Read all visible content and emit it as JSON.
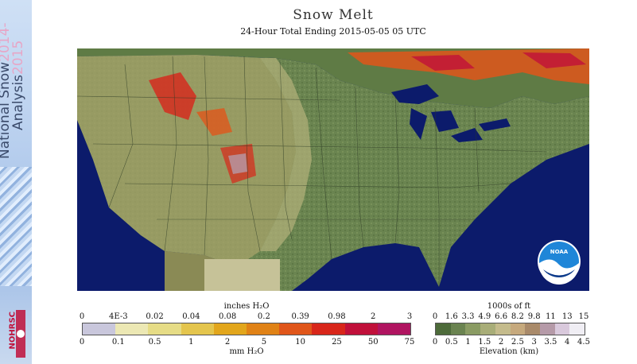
{
  "strip": {
    "line1": "National Snow",
    "line1_year": "2014-",
    "line2": "Analysis",
    "line2_year": "2015",
    "logo_text": "NOHRSC"
  },
  "title": "Snow Melt",
  "subtitle": "24-Hour Total Ending 2015-05-05 05 UTC",
  "map": {
    "logo_text": "NOAA",
    "water_color": "#0c1b6b"
  },
  "legend_melt": {
    "top_label": "inches H₂O",
    "bottom_label": "mm H₂O",
    "inches": [
      "0",
      "4E-3",
      "0.02",
      "0.04",
      "0.08",
      "0.2",
      "0.39",
      "0.98",
      "2",
      "3"
    ],
    "mm": [
      "0",
      "0.1",
      "0.5",
      "1",
      "2",
      "5",
      "10",
      "25",
      "50",
      "75"
    ],
    "colors": [
      "#c9c7dc",
      "#ece8b4",
      "#e6dc86",
      "#e4c54d",
      "#e2a61c",
      "#e08216",
      "#e0561a",
      "#d8261a",
      "#c0103a",
      "#b01460"
    ]
  },
  "legend_elev": {
    "top_label": "1000s of ft",
    "bottom_label": "Elevation (km)",
    "ft": [
      "0",
      "1.6",
      "3.3",
      "4.9",
      "6.6",
      "8.2",
      "9.8",
      "11",
      "13",
      "15"
    ],
    "km": [
      "0",
      "0.5",
      "1",
      "1.5",
      "2",
      "2.5",
      "3",
      "3.5",
      "4",
      "4.5"
    ],
    "colors": [
      "#4d6b3a",
      "#6a8350",
      "#8a9b63",
      "#a8ad78",
      "#c4bb8c",
      "#c6a97d",
      "#a98a6a",
      "#b59aa8",
      "#d9c9dc",
      "#f0eef4"
    ]
  }
}
